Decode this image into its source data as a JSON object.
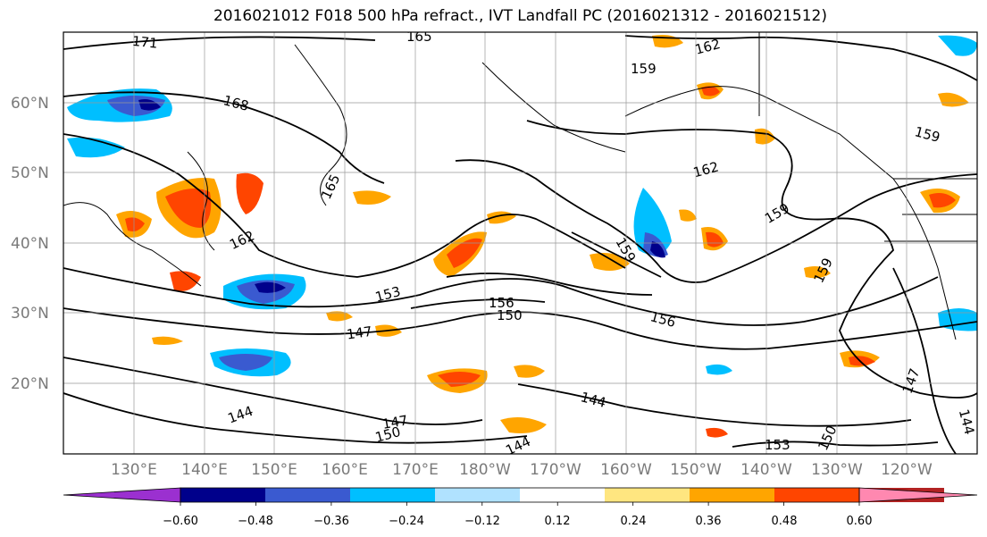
{
  "title": "2016021012 F018 500 hPa refract., IVT Landfall PC (2016021312 - 2016021512)",
  "map": {
    "lat_labels": [
      "60°N",
      "50°N",
      "40°N",
      "30°N",
      "20°N"
    ],
    "lon_labels": [
      "130°E",
      "140°E",
      "150°E",
      "160°E",
      "170°E",
      "180°W",
      "170°W",
      "160°W",
      "150°W",
      "140°W",
      "130°W",
      "120°W"
    ],
    "contour_labels": [
      "171",
      "165",
      "168",
      "162",
      "159",
      "165",
      "162",
      "162",
      "159",
      "159",
      "159",
      "153",
      "156",
      "150",
      "156",
      "147",
      "147",
      "144",
      "144",
      "150",
      "144",
      "153",
      "150",
      "147",
      "144",
      "159"
    ]
  },
  "colorbar": {
    "tick_labels": [
      "−0.60",
      "−0.48",
      "−0.36",
      "−0.24",
      "−0.12",
      "0.12",
      "0.24",
      "0.36",
      "0.48",
      "0.60"
    ],
    "colors": [
      "#9b30d0",
      "#00008b",
      "#3a5ad0",
      "#00bfff",
      "#b0e2ff",
      "#ffffff",
      "#ffe680",
      "#ffa500",
      "#ff4500",
      "#b22222",
      "#ff88b0"
    ]
  }
}
